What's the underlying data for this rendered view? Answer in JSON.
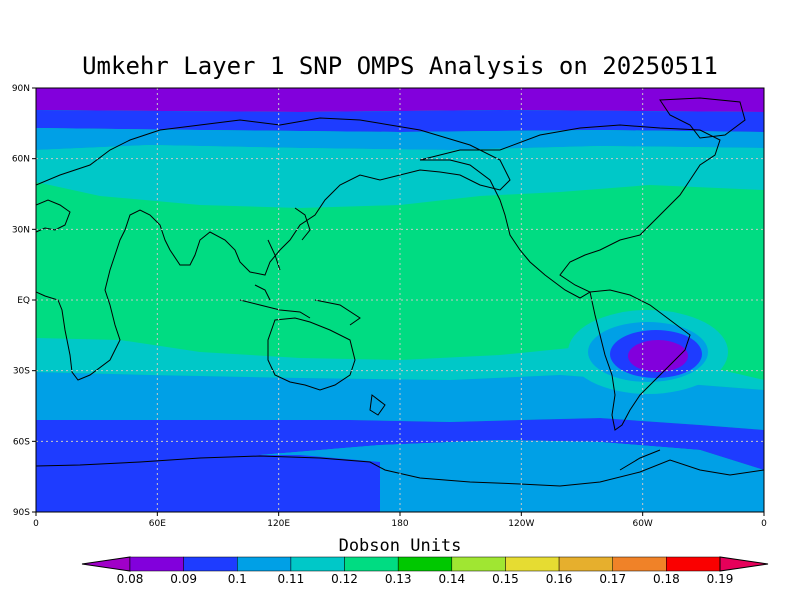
{
  "title": "Umkehr Layer 1 SNP OMPS Analysis on 20250511",
  "lat_labels": [
    "90N",
    "60N",
    "30N",
    "EQ",
    "30S",
    "60S",
    "90S"
  ],
  "lon_labels": [
    "0",
    "60E",
    "120E",
    "180",
    "120W",
    "60W",
    "0"
  ],
  "colorbar": {
    "title": "Dobson Units",
    "labels": [
      "0.08",
      "0.09",
      "0.1",
      "0.11",
      "0.12",
      "0.13",
      "0.14",
      "0.15",
      "0.16",
      "0.17",
      "0.18",
      "0.19"
    ],
    "colors": [
      "#a000c8",
      "#8200dc",
      "#1e3cff",
      "#00a0e6",
      "#00c8c8",
      "#00dc82",
      "#00c800",
      "#a0e632",
      "#e6dc32",
      "#e6af2d",
      "#f08228",
      "#fa0000",
      "#e6005a"
    ]
  },
  "band_colors": {
    "0.08": "#8200dc",
    "0.09": "#1e3cff",
    "0.1": "#00a0e6",
    "0.11": "#00c8c8",
    "0.12": "#00dc82"
  }
}
